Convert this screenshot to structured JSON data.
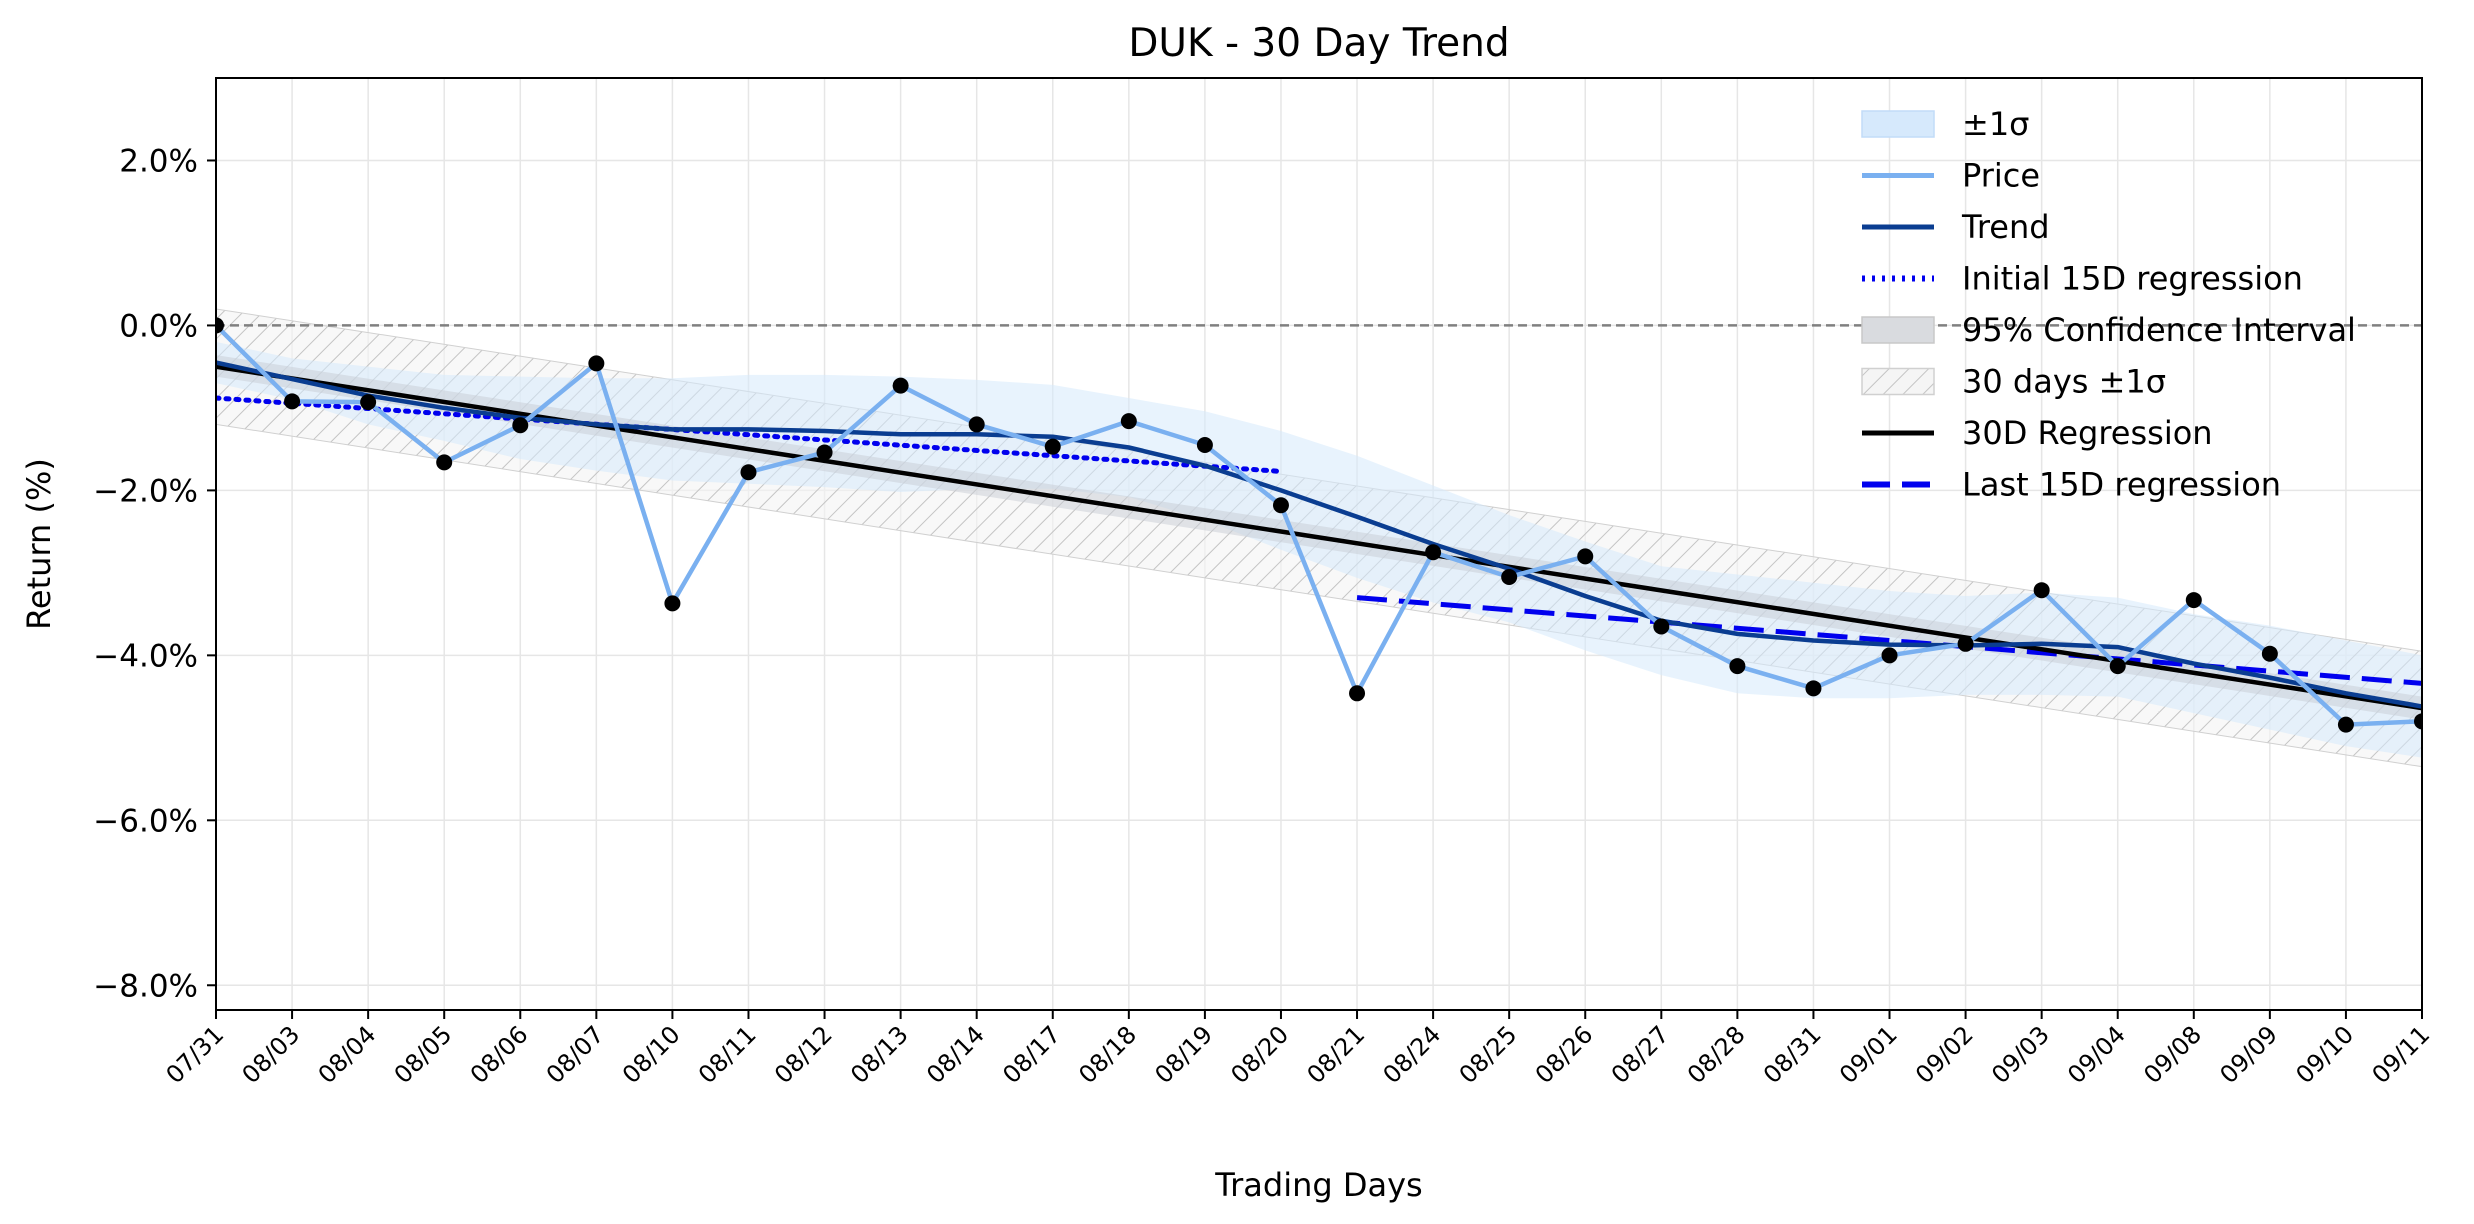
{
  "chart_data": {
    "type": "line",
    "title": "DUK - 30 Day Trend",
    "xlabel": "Trading Days",
    "ylabel": "Return (%)",
    "categories": [
      "07/31",
      "08/03",
      "08/04",
      "08/05",
      "08/06",
      "08/07",
      "08/10",
      "08/11",
      "08/12",
      "08/13",
      "08/14",
      "08/17",
      "08/18",
      "08/19",
      "08/20",
      "08/21",
      "08/24",
      "08/25",
      "08/26",
      "08/27",
      "08/28",
      "08/31",
      "09/01",
      "09/02",
      "09/03",
      "09/04",
      "09/08",
      "09/09",
      "09/10",
      "09/11"
    ],
    "ylim": [
      -8.3,
      3.0
    ],
    "yticks": [
      -8.0,
      -6.0,
      -4.0,
      -2.0,
      0.0,
      2.0
    ],
    "ytick_labels": [
      "−8.0%",
      "−6.0%",
      "−4.0%",
      "−2.0%",
      "0.0%",
      "2.0%"
    ],
    "grid": true,
    "legend_position": "top-right",
    "reference_line": {
      "y": 0.0,
      "color": "#808080",
      "style": "dashed"
    },
    "series": [
      {
        "name": "Price",
        "color": "#7ab0f0",
        "values": [
          0.0,
          -0.92,
          -0.93,
          -1.66,
          -1.21,
          -0.46,
          -3.37,
          -1.78,
          -1.54,
          -0.73,
          -1.2,
          -1.47,
          -1.16,
          -1.45,
          -2.18,
          -4.46,
          -2.75,
          -3.05,
          -2.8,
          -3.65,
          -4.13,
          -4.4,
          -4.0,
          -3.86,
          -3.21,
          -4.13,
          -3.33,
          -3.98,
          -4.84,
          -4.8
        ]
      },
      {
        "name": "Trend",
        "color": "#0a3d91",
        "values": [
          -0.45,
          -0.65,
          -0.85,
          -1.0,
          -1.12,
          -1.2,
          -1.26,
          -1.26,
          -1.28,
          -1.32,
          -1.32,
          -1.35,
          -1.48,
          -1.7,
          -2.0,
          -2.32,
          -2.65,
          -2.95,
          -3.28,
          -3.58,
          -3.74,
          -3.82,
          -3.87,
          -3.88,
          -3.86,
          -3.9,
          -4.1,
          -4.27,
          -4.46,
          -4.62
        ]
      },
      {
        "name": "±1σ",
        "color": "#d6e9fc",
        "upper": [
          -0.2,
          -0.4,
          -0.5,
          -0.6,
          -0.62,
          -0.64,
          -0.64,
          -0.6,
          -0.6,
          -0.62,
          -0.66,
          -0.72,
          -0.88,
          -1.04,
          -1.28,
          -1.58,
          -1.94,
          -2.3,
          -2.62,
          -2.92,
          -3.02,
          -3.12,
          -3.22,
          -3.28,
          -3.24,
          -3.3,
          -3.5,
          -3.64,
          -3.82,
          -4.0
        ],
        "lower": [
          -0.7,
          -0.9,
          -1.2,
          -1.4,
          -1.62,
          -1.76,
          -1.88,
          -1.92,
          -1.96,
          -2.02,
          -1.98,
          -1.98,
          -2.08,
          -2.36,
          -2.72,
          -3.06,
          -3.36,
          -3.6,
          -3.94,
          -4.24,
          -4.46,
          -4.52,
          -4.52,
          -4.48,
          -4.48,
          -4.5,
          -4.7,
          -4.9,
          -5.1,
          -5.24
        ]
      },
      {
        "name": "Initial 15D regression",
        "color": "#0000ee",
        "style": "dotted",
        "x": [
          "07/31",
          "08/20"
        ],
        "y": [
          -0.88,
          -1.77
        ]
      },
      {
        "name": "95% Confidence Interval",
        "color": "#c8ccd4",
        "upper": [
          -0.36,
          -4.5
        ],
        "lower": [
          -0.62,
          -4.78
        ]
      },
      {
        "name": "30 days ±1σ",
        "color": "#dcdcdc",
        "style": "hatched",
        "upper": [
          0.2,
          -3.95
        ],
        "lower": [
          -1.2,
          -5.35
        ]
      },
      {
        "name": "30D Regression",
        "color": "#000000",
        "x": [
          "07/31",
          "09/11"
        ],
        "y": [
          -0.5,
          -4.64
        ]
      },
      {
        "name": "Last 15D regression",
        "color": "#0000ee",
        "style": "dashed",
        "x": [
          "08/21",
          "09/11"
        ],
        "y": [
          -3.3,
          -4.34
        ]
      }
    ],
    "legend_entries": [
      "±1σ",
      "Price",
      "Trend",
      "Initial 15D regression",
      "95% Confidence Interval",
      "30 days ±1σ",
      "30D Regression",
      "Last 15D regression"
    ]
  }
}
